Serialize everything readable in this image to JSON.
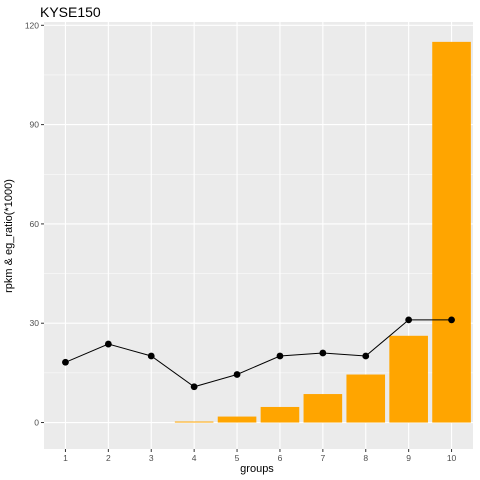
{
  "chart_data": {
    "type": "bar",
    "title": "KYSE150",
    "xlabel": "groups",
    "ylabel": "rpkm & eg_ratio(*1000)",
    "categories": [
      "1",
      "2",
      "3",
      "4",
      "5",
      "6",
      "7",
      "8",
      "9",
      "10"
    ],
    "ylim": [
      -8,
      121
    ],
    "yticks": [
      0,
      30,
      60,
      90,
      120
    ],
    "grid": true,
    "series": [
      {
        "type": "bar",
        "values": [
          0,
          0,
          0,
          0.3,
          1.8,
          4.7,
          8.6,
          14.5,
          26.2,
          115
        ]
      },
      {
        "type": "line",
        "values": [
          18.2,
          23.7,
          20.1,
          10.8,
          14.5,
          20.1,
          21.0,
          20.1,
          31.0,
          31.0
        ]
      }
    ],
    "colors": {
      "bar": "#FFA500",
      "line": "#000000",
      "panel": "#EBEBEB",
      "grid": "#FFFFFF"
    }
  }
}
